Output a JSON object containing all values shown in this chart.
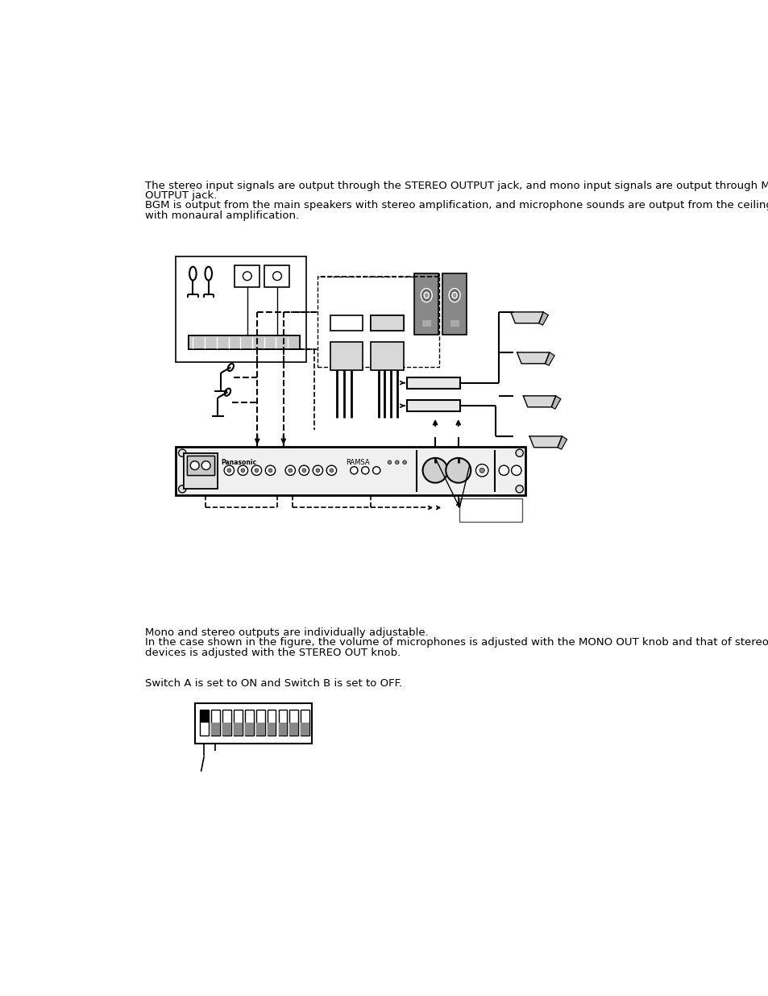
{
  "bg_color": "#ffffff",
  "para1_line1": "The stereo input signals are output through the STEREO OUTPUT jack, and mono input signals are output through MONO",
  "para1_line2": "OUTPUT jack.",
  "para1_line3": "BGM is output from the main speakers with stereo amplification, and microphone sounds are output from the ceiling speakers",
  "para1_line4": "with monaural amplification.",
  "para2_line1": "Mono and stereo outputs are individually adjustable.",
  "para2_line2": "In the case shown in the figure, the volume of microphones is adjusted with the MONO OUT knob and that of stereo source",
  "para2_line3": "devices is adjusted with the STEREO OUT knob.",
  "para3_line1": "Switch A is set to ON and Switch B is set to OFF."
}
